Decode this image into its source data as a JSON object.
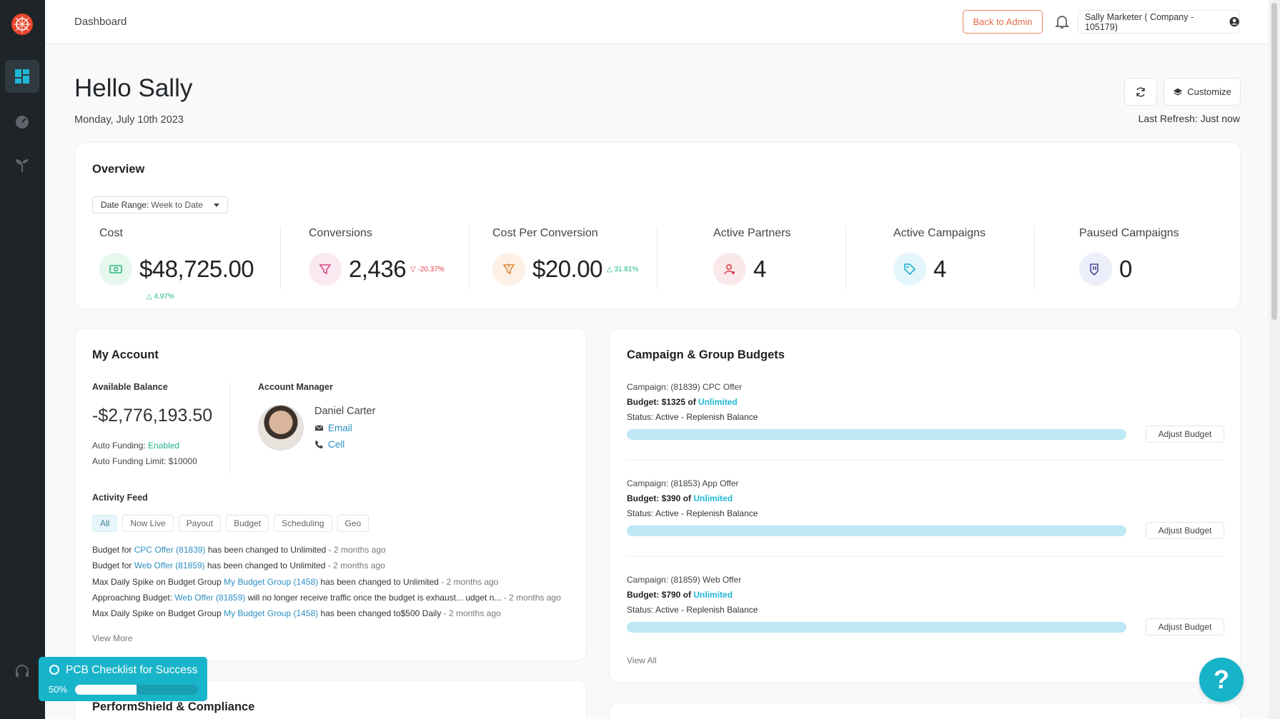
{
  "topbar": {
    "breadcrumb": "Dashboard",
    "back_to_admin": "Back to Admin",
    "user_label": "Sally Marketer ( Company - 105179)"
  },
  "sidebar": {
    "items": [
      {
        "icon": "dashboard-grid-icon",
        "active": true
      },
      {
        "icon": "speedometer-icon",
        "active": false
      },
      {
        "icon": "sprout-icon",
        "active": false
      },
      {
        "icon": "support-headset-icon",
        "active": false
      }
    ]
  },
  "greeting": {
    "hello": "Hello Sally",
    "date": "Monday, July 10th 2023",
    "customize": "Customize",
    "last_refresh": "Last Refresh: Just now"
  },
  "overview": {
    "title": "Overview",
    "date_range_label": "Date Range:",
    "date_range_value": "Week to Date",
    "stats": [
      {
        "label": "Cost",
        "value": "$48,725.00",
        "delta": "△ 4.97%",
        "direction": "up",
        "icon": "money-icon",
        "color": "#e6f7ee"
      },
      {
        "label": "Conversions",
        "value": "2,436",
        "delta": "▽ -20.37%",
        "direction": "down",
        "icon": "funnel-icon",
        "color": "#fbe9f1"
      },
      {
        "label": "Cost Per Conversion",
        "value": "$20.00",
        "delta": "△ 31.81%",
        "direction": "up",
        "icon": "funnel-dollar-icon",
        "color": "#fdf0e4"
      },
      {
        "label": "Active Partners",
        "value": "4",
        "icon": "partner-icon",
        "color": "#fbe8ea"
      },
      {
        "label": "Active Campaigns",
        "value": "4",
        "icon": "tag-icon",
        "color": "#e3f6fb"
      },
      {
        "label": "Paused Campaigns",
        "value": "0",
        "icon": "pause-tag-icon",
        "color": "#eceefa"
      }
    ]
  },
  "account": {
    "title": "My Account",
    "available_balance_label": "Available Balance",
    "balance": "-$2,776,193.50",
    "auto_funding_label": "Auto Funding:",
    "auto_funding_value": "Enabled",
    "auto_funding_limit": "Auto Funding Limit: $10000",
    "manager_label": "Account Manager",
    "manager_name": "Daniel Carter",
    "email": "Email",
    "cell": "Cell",
    "activity_label": "Activity Feed",
    "chips": [
      "All",
      "Now Live",
      "Payout",
      "Budget",
      "Scheduling",
      "Geo"
    ],
    "feed": [
      {
        "pre": "Budget for ",
        "link": "CPC Offer (81839)",
        "post": " has been changed to  Unlimited",
        "ago": " - 2 months ago"
      },
      {
        "pre": "Budget for ",
        "link": "Web Offer (81859)",
        "post": " has been changed to  Unlimited",
        "ago": " - 2 months ago"
      },
      {
        "pre": "Max Daily Spike on Budget Group ",
        "link": "My Budget Group (1458)",
        "post": " has been changed to  Unlimited",
        "ago": " - 2 months ago"
      },
      {
        "pre": "Approaching Budget: ",
        "link": "Web Offer (81859)",
        "post": " will no longer receive traffic once the budget is exhaust... udget n...",
        "ago": " - 2 months ago"
      },
      {
        "pre": "Max Daily Spike on Budget Group ",
        "link": "My Budget Group (1458)",
        "post": " has been changed to$500 Daily",
        "ago": " - 2 months ago"
      }
    ],
    "view_more": "View More"
  },
  "budgets": {
    "title": "Campaign & Group Budgets",
    "items": [
      {
        "campaign": "Campaign: (81839) CPC Offer",
        "budget_prefix": "Budget: $1325 of ",
        "budget_limit": "Unlimited",
        "status": "Status: Active - Replenish Balance",
        "fill": 1.0,
        "button": "Adjust Budget"
      },
      {
        "campaign": "Campaign: (81853) App Offer",
        "budget_prefix": "Budget: $390 of ",
        "budget_limit": "Unlimited",
        "status": "Status: Active - Replenish Balance",
        "fill": 1.0,
        "button": "Adjust Budget"
      },
      {
        "campaign": "Campaign: (81859) Web Offer",
        "budget_prefix": "Budget: $790 of ",
        "budget_limit": "Unlimited",
        "status": "Status: Active - Replenish Balance",
        "fill": 1.0,
        "button": "Adjust Budget"
      }
    ],
    "view_all": "View All"
  },
  "perform": {
    "title": "PerformShield & Compliance"
  },
  "checklist": {
    "title": "PCB Checklist for Success",
    "percent_label": "50%",
    "progress": 0.5
  },
  "help": {
    "label": "?"
  },
  "colors": {
    "accent": "#18b4c9",
    "sidebar": "#1f2428",
    "brand": "#e8452c"
  }
}
